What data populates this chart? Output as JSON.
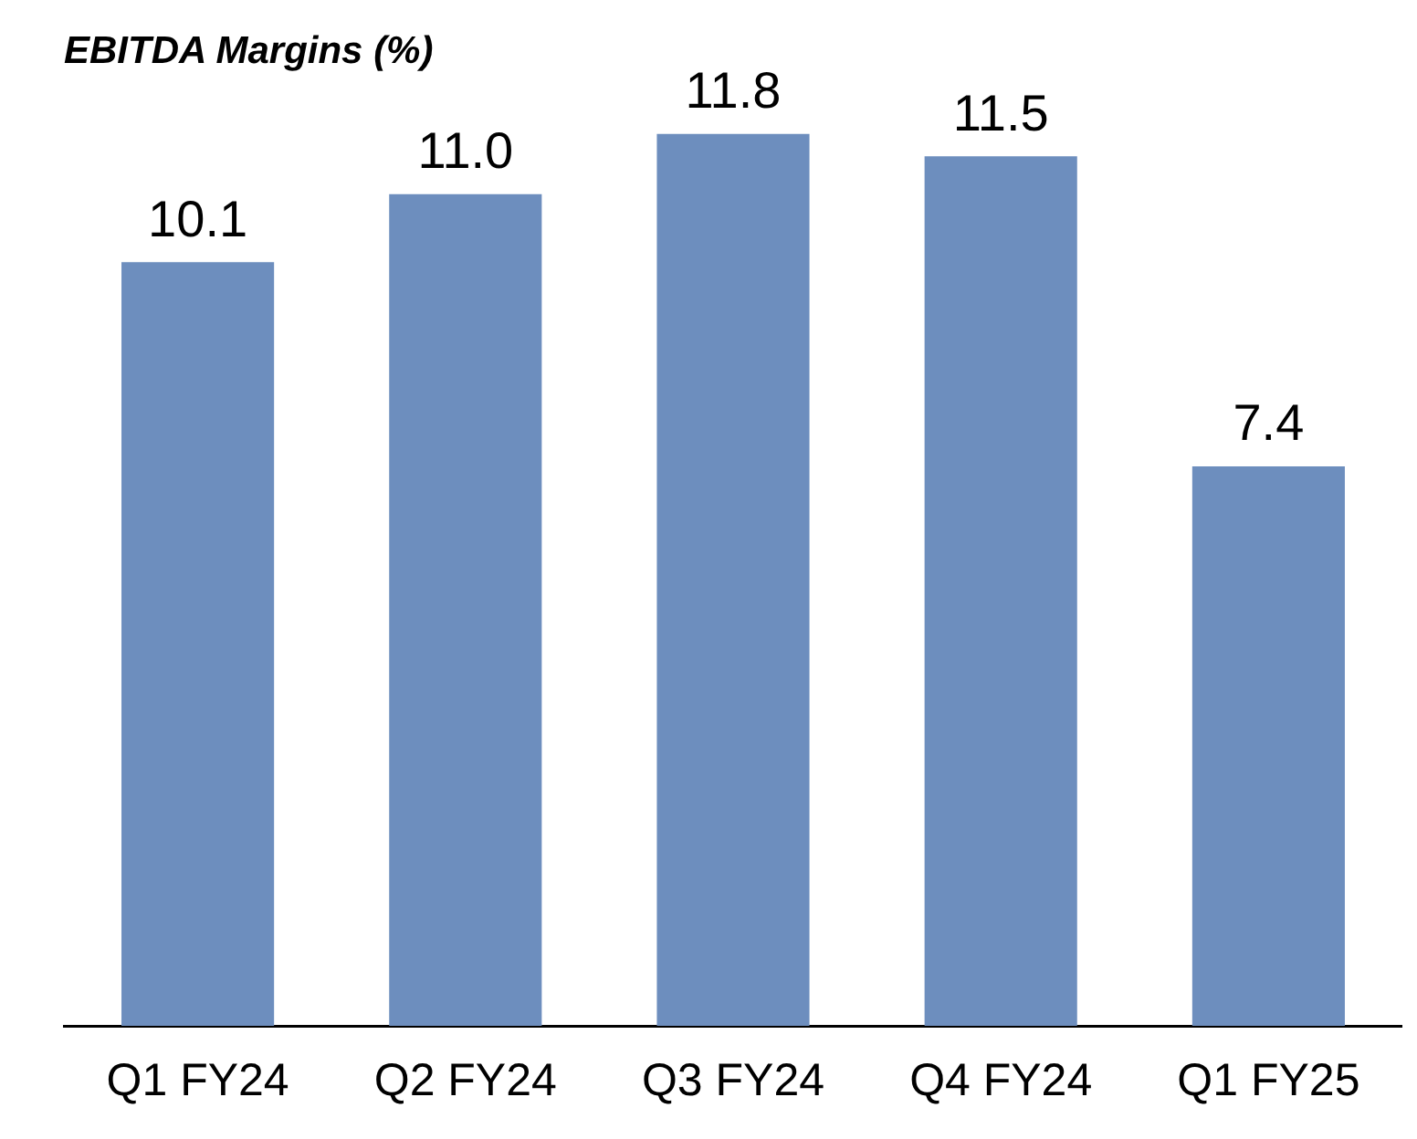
{
  "chart_data": {
    "type": "bar",
    "title": "EBITDA Margins (%)",
    "categories": [
      "Q1 FY24",
      "Q2 FY24",
      "Q3 FY24",
      "Q4 FY24",
      "Q1 FY25"
    ],
    "values": [
      10.1,
      11.0,
      11.8,
      11.5,
      7.4
    ],
    "value_labels": [
      "10.1",
      "11.0",
      "11.8",
      "11.5",
      "7.4"
    ],
    "color": "#6d8ebe",
    "grid": false,
    "legend": false
  }
}
